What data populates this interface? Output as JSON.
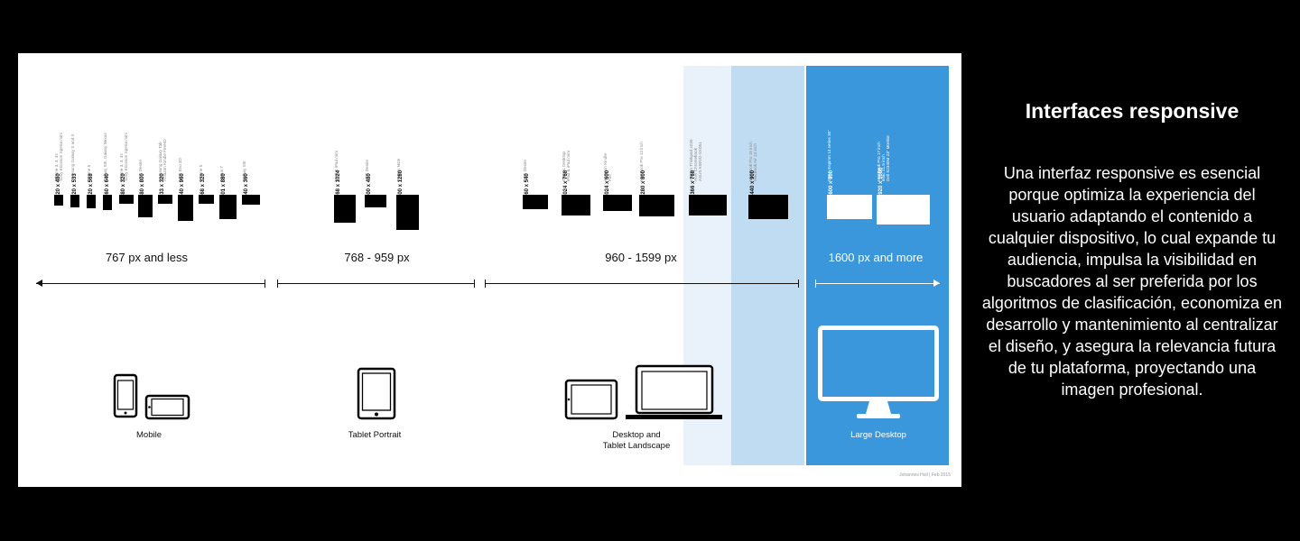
{
  "diagram": {
    "groups": [
      {
        "range": "767 px and less",
        "device_label": "Mobile",
        "devices": [
          {
            "resolution": "320 x 480",
            "names": [
              "iPhone 3, 4, 4s",
              "Sony Ericsson Xperia mini"
            ]
          },
          {
            "resolution": "320 x 533",
            "names": [
              "Samsung Galaxy S and II"
            ]
          },
          {
            "resolution": "320 x 568",
            "names": [
              "iPhone 5"
            ]
          },
          {
            "resolution": "360 x 640",
            "names": [
              "Galaxy SIII, Galaxy Nexus"
            ]
          },
          {
            "resolution": "480 x 320",
            "names": [
              "iPhone 3, 4, 4s",
              "Sony Ericsson Xperia mini"
            ]
          },
          {
            "resolution": "480 x 800",
            "names": [
              "HTC Desire"
            ]
          },
          {
            "resolution": "533 x 320",
            "names": [
              "Samsung Galaxy Tab",
              "Amazon Kindle FireHD"
            ]
          },
          {
            "resolution": "540 x 960",
            "names": [
              "HTC Evo 3D"
            ]
          },
          {
            "resolution": "568 x 320",
            "names": [
              "iPhone 5"
            ]
          },
          {
            "resolution": "601 x 880",
            "names": [
              "Nexus 7"
            ]
          },
          {
            "resolution": "640 x 360",
            "names": [
              "Galaxy SIII"
            ]
          }
        ]
      },
      {
        "range": "768 - 959 px",
        "device_label": "Tablet Portrait",
        "devices": [
          {
            "resolution": "768 x 1024",
            "names": [
              "iPad & iPad mini"
            ]
          },
          {
            "resolution": "800 x 480",
            "names": [
              "HTC Desire"
            ]
          },
          {
            "resolution": "800 x 1280",
            "names": [
              "Galaxy Note"
            ]
          }
        ]
      },
      {
        "range": "960 - 1599 px",
        "device_label": "Desktop and\nTablet Landscape",
        "devices": [
          {
            "resolution": "960 x 540",
            "names": [
              "HTC Desire"
            ]
          },
          {
            "resolution": "1024 x 768",
            "names": [
              "Classic Desktop",
              "iPad & iPad mini"
            ]
          },
          {
            "resolution": "1024 x 600",
            "names": [
              "Amazon Kindle",
              "Fire"
            ]
          },
          {
            "resolution": "1280 x 800",
            "names": [
              "MacBook Pro 13 inch"
            ]
          },
          {
            "resolution": "1366 x 768",
            "names": [
              "Lenovo Thinkpad x230",
              "Acer Chromebook",
              "ASUS K55VD-SX081"
            ]
          },
          {
            "resolution": "1440 x 900",
            "names": [
              "MacBook Pro 15 inch",
              "MacBook Air 13 inch"
            ]
          }
        ]
      },
      {
        "range": "1600 px and more",
        "device_label": "Large Desktop",
        "devices": [
          {
            "resolution": "1600 x 900",
            "names": [
              "DELL Inspiron 14 series 30\""
            ]
          },
          {
            "resolution": "1920 x 1080",
            "names": [
              "MacBook Pro 17 inch",
              "iMac 21.5 inch",
              "Dell S2340M 23\" Monitor"
            ]
          }
        ]
      }
    ],
    "credit": "Johannes Holl | Feb 2015"
  },
  "side": {
    "title": "Interfaces responsive",
    "body": "Una interfaz responsive es esencial porque optimiza la experiencia del usuario adaptando el contenido a cualquier dispositivo, lo cual expande tu audiencia, impulsa la visibilidad en buscadores al ser preferida por los algoritmos de clasificación, economiza en desarrollo y mantenimiento al centralizar el diseño, y asegura la relevancia futura de tu plataforma, proyectando una imagen profesional."
  }
}
